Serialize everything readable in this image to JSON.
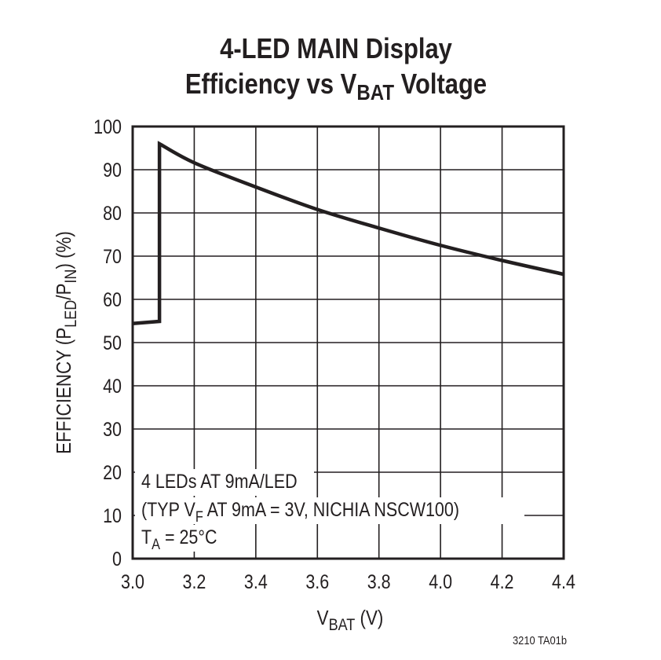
{
  "chart_data": {
    "type": "line",
    "title_line1": "4-LED MAIN Display",
    "title_line2": {
      "pre": "Efficiency vs V",
      "sub": "BAT",
      "post": " Voltage"
    },
    "xlabel": {
      "pre": "V",
      "sub": "BAT",
      "post": " (V)"
    },
    "ylabel": {
      "p1": "EFFICIENCY (P",
      "s1": "LED",
      "p2": "/P",
      "s2": "IN",
      "p3": ") (%)"
    },
    "xlim": [
      3.0,
      4.4
    ],
    "ylim": [
      0,
      100
    ],
    "xticks": [
      "3.0",
      "3.2",
      "3.4",
      "3.6",
      "3.8",
      "4.0",
      "4.2",
      "4.4"
    ],
    "yticks": [
      "0",
      "10",
      "20",
      "30",
      "40",
      "50",
      "60",
      "70",
      "80",
      "90",
      "100"
    ],
    "grid": true,
    "series": [
      {
        "x": [
          3.0,
          3.087,
          3.087,
          3.2,
          3.4,
          3.6,
          3.8,
          4.0,
          4.2,
          4.4
        ],
        "y": [
          54.4,
          54.9,
          96.0,
          91.6,
          86.0,
          80.8,
          76.5,
          72.5,
          69.0,
          65.8
        ]
      }
    ],
    "annotation": {
      "line1": "4 LEDs AT 9mA/LED",
      "line2": {
        "pre": "(TYP V",
        "sub": "F",
        "post": " AT 9mA = 3V, NICHIA NSCW100)"
      },
      "line3": {
        "pre": "T",
        "sub": "A",
        "post": " = 25°C"
      }
    },
    "figure_id": "3210 TA01b",
    "colors": {
      "line": "#231f20",
      "grid": "#231f20",
      "background": "#ffffff"
    }
  }
}
